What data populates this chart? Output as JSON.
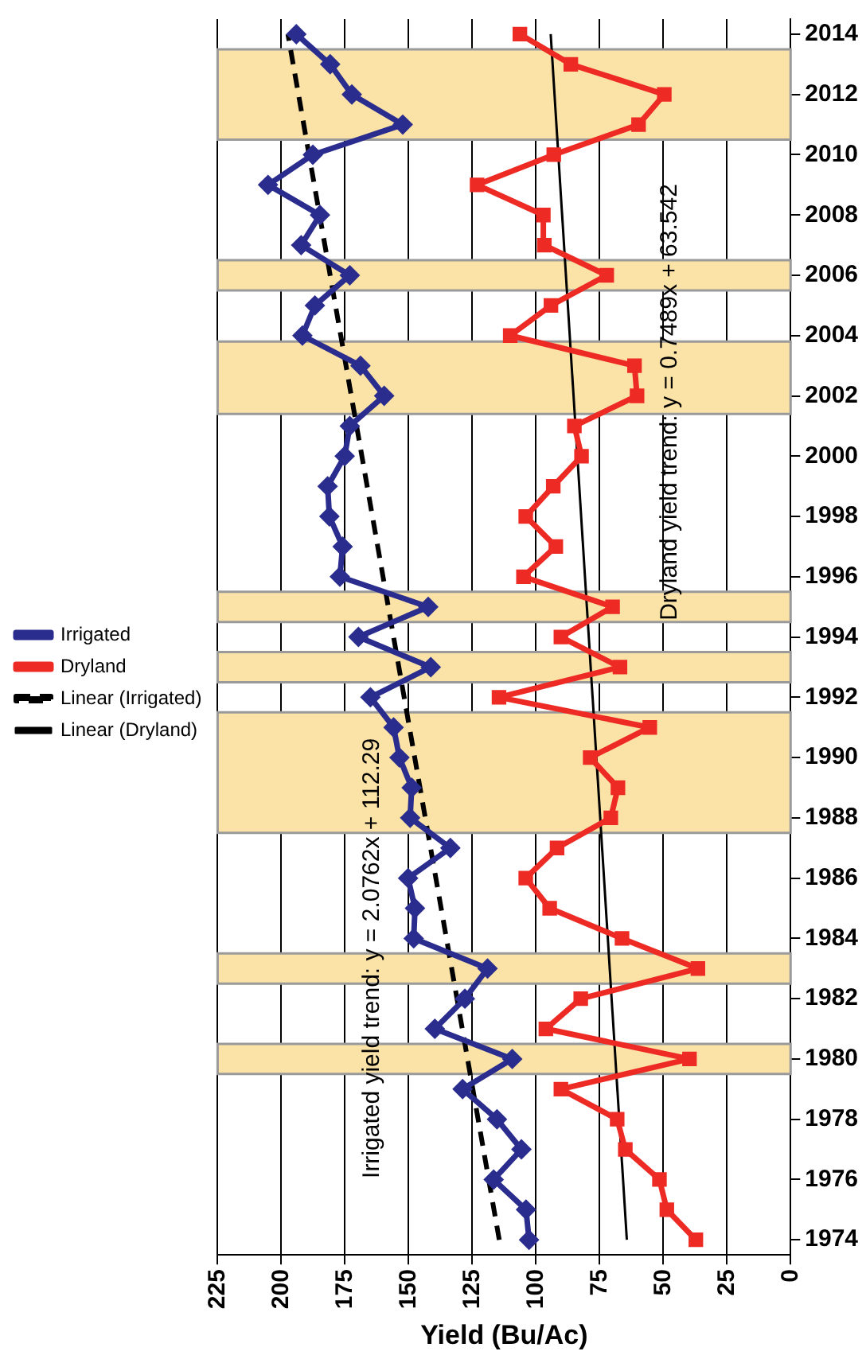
{
  "chart_data": {
    "type": "line",
    "orientation": "horizontal",
    "xlabel": "Yield (Bu/Ac)",
    "x": [
      1974,
      1975,
      1976,
      1977,
      1978,
      1979,
      1980,
      1981,
      1982,
      1983,
      1984,
      1985,
      1986,
      1987,
      1988,
      1989,
      1990,
      1991,
      1992,
      1993,
      1994,
      1995,
      1996,
      1997,
      1998,
      1999,
      2000,
      2001,
      2002,
      2003,
      2004,
      2005,
      2006,
      2007,
      2008,
      2009,
      2010,
      2011,
      2012,
      2013,
      2014
    ],
    "series": [
      {
        "name": "Irrigated",
        "color": "#2b2d8e",
        "marker": "diamond",
        "values": [
          102.7,
          103.9,
          116.6,
          105.7,
          115.3,
          128.8,
          109.3,
          139.7,
          127.9,
          119,
          148,
          147.5,
          150.2,
          133.6,
          149.4,
          148.8,
          153.6,
          155.9,
          165,
          141.3,
          169.7,
          142.3,
          177,
          175.9,
          181.1,
          181.8,
          175.1,
          173.1,
          159.6,
          168.9,
          191.7,
          186.8,
          173.1,
          192.2,
          184.8,
          205.2,
          187.6,
          152.3,
          172.3,
          180.8,
          194.1
        ]
      },
      {
        "name": "Dryland",
        "color": "#ee2a24",
        "marker": "square",
        "values": [
          37.2,
          48.6,
          51.5,
          64.9,
          68.1,
          90.2,
          39.7,
          96.1,
          82.4,
          36.4,
          66.2,
          94.6,
          104,
          91.7,
          70.6,
          67.8,
          78.7,
          55.3,
          114.5,
          67,
          90.2,
          69.9,
          104.9,
          92.2,
          104,
          93.2,
          82.1,
          84.9,
          60.3,
          61.3,
          110.1,
          94.1,
          72.2,
          96.7,
          97.1,
          123.1,
          93,
          59.7,
          49.6,
          86.3,
          106.3
        ]
      },
      {
        "name": "Linear (Irrigated)",
        "type": "line",
        "values": [
          114.4,
          null,
          null,
          null,
          null,
          null,
          null,
          null,
          null,
          null,
          null,
          null,
          null,
          null,
          null,
          null,
          null,
          null,
          null,
          null,
          null,
          null,
          null,
          null,
          null,
          null,
          null,
          null,
          null,
          null,
          null,
          null,
          null,
          null,
          null,
          null,
          null,
          null,
          null,
          null,
          197.4
        ],
        "color": "#000000",
        "marker": "none",
        "line_style": "dashed"
      },
      {
        "name": "Linear (Dryland)",
        "type": "line",
        "values": [
          64.3,
          null,
          null,
          null,
          null,
          null,
          null,
          null,
          null,
          null,
          null,
          null,
          null,
          null,
          null,
          null,
          null,
          null,
          null,
          null,
          null,
          null,
          null,
          null,
          null,
          null,
          null,
          null,
          null,
          null,
          null,
          null,
          null,
          null,
          null,
          null,
          null,
          null,
          null,
          null,
          94.2
        ],
        "color": "#000000",
        "marker": "none",
        "line_style": "solid"
      }
    ],
    "xlim": [
      225,
      0
    ],
    "xticks": [
      225,
      200,
      175,
      150,
      125,
      100,
      75,
      50,
      25,
      0
    ],
    "ylim": [
      1973.5,
      2014.5
    ],
    "yticks": [
      1974,
      1976,
      1978,
      1980,
      1982,
      1984,
      1986,
      1988,
      1990,
      1992,
      1994,
      1996,
      1998,
      2000,
      2002,
      2004,
      2006,
      2008,
      2010,
      2012,
      2014
    ],
    "grid": "x",
    "legend": "left",
    "bands": [
      {
        "axis": "y",
        "from": 1979.5,
        "to": 1980.5,
        "color": "#fbe2a6"
      },
      {
        "axis": "y",
        "from": 1982.5,
        "to": 1983.5,
        "color": "#fbe2a6"
      },
      {
        "axis": "y",
        "from": 1987.5,
        "to": 1991.5,
        "color": "#fbe2a6"
      },
      {
        "axis": "y",
        "from": 1992.5,
        "to": 1993.5,
        "color": "#fbe2a6"
      },
      {
        "axis": "y",
        "from": 1994.5,
        "to": 1995.5,
        "color": "#fbe2a6"
      },
      {
        "axis": "y",
        "from": 2001.4,
        "to": 2003.8,
        "color": "#fbe2a6"
      },
      {
        "axis": "y",
        "from": 2005.5,
        "to": 2006.5,
        "color": "#fbe2a6"
      },
      {
        "axis": "y",
        "from": 2010.5,
        "to": 2013.5,
        "color": "#fbe2a6"
      }
    ],
    "annotations": [
      "Irrigated yield trend: y = 2.0762x + 112.29",
      "Dryland yield trend: y = 0.7489x + 63.542"
    ]
  }
}
